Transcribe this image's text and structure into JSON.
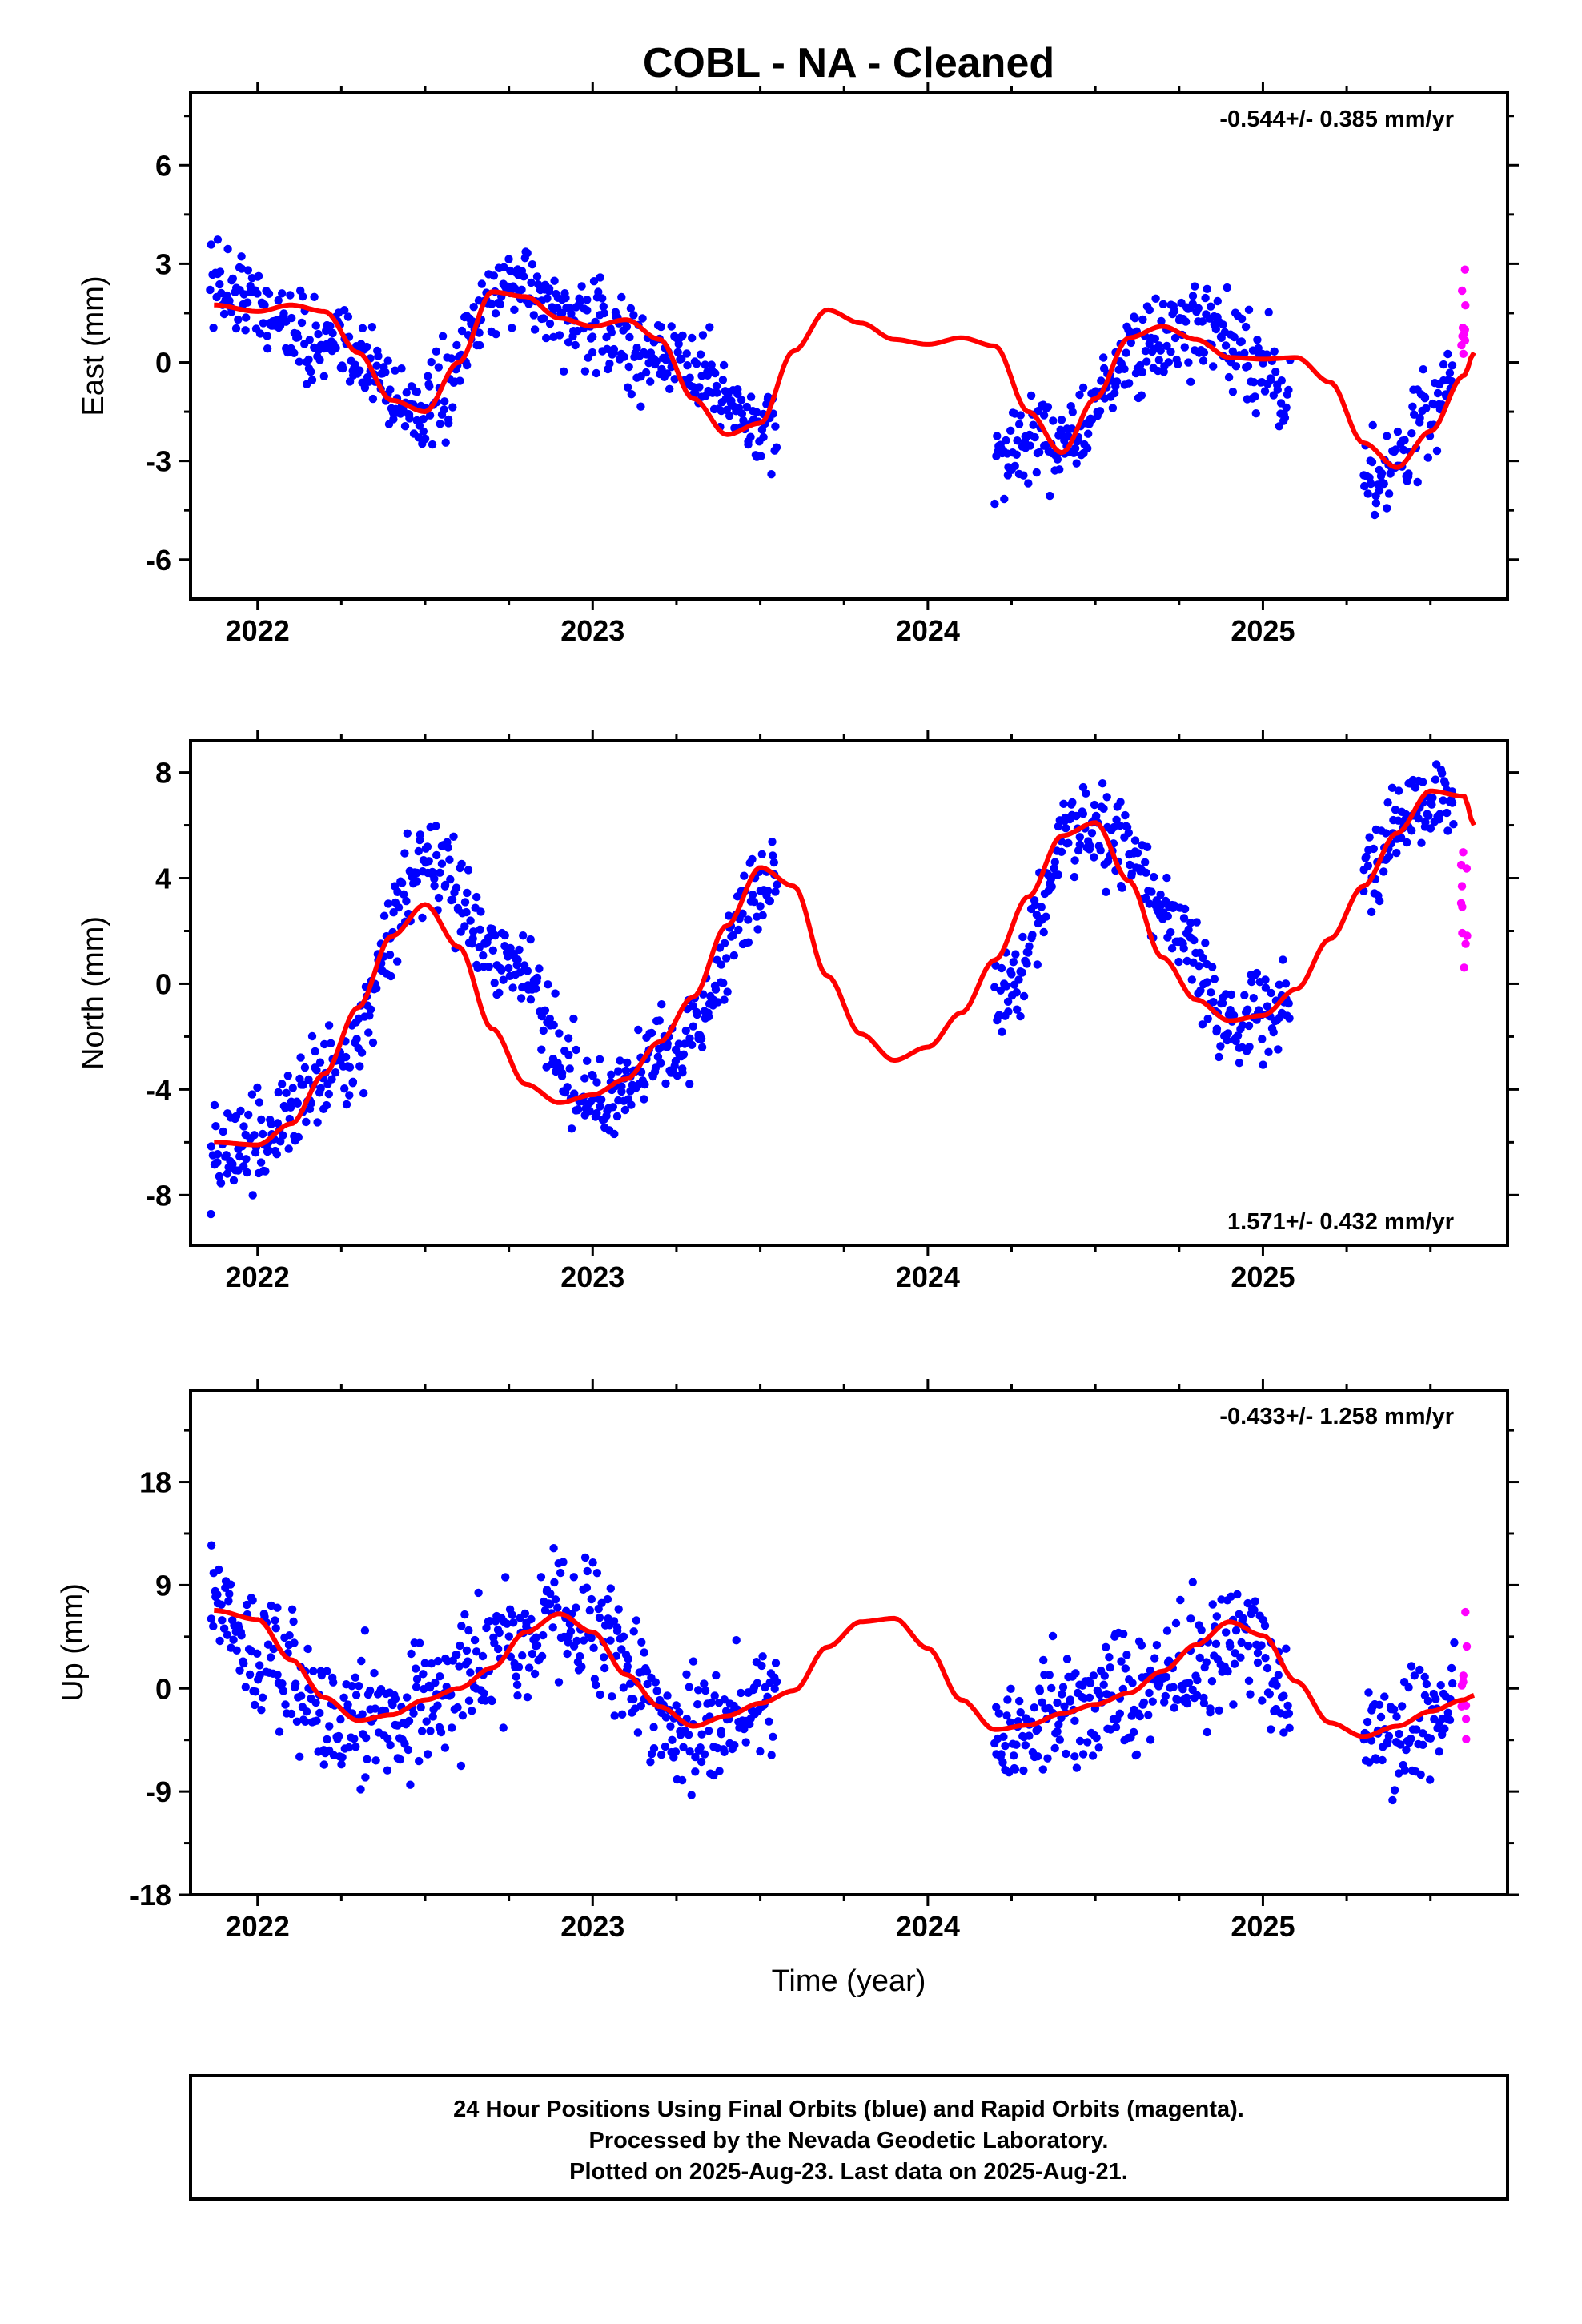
{
  "title": "COBL  - NA - Cleaned",
  "xlabel": "Time (year)",
  "footer": {
    "line1": "24 Hour Positions Using Final Orbits (blue) and Rapid Orbits (magenta).",
    "line2": "Processed by the Nevada Geodetic Laboratory.",
    "line3": "Plotted on 2025-Aug-23. Last data on 2025-Aug-21."
  },
  "colors": {
    "final": "#0000ff",
    "rapid": "#ff00ff",
    "model": "#ff0000",
    "frame": "#000000"
  },
  "chart_data": [
    {
      "type": "scatter",
      "ylabel": "East (mm)",
      "rate": "-0.544+/- 0.385 mm/yr",
      "rate_position": "top-right",
      "xlim": [
        2021.8,
        2025.73
      ],
      "ylim": [
        -7.2,
        8.2
      ],
      "xticks": [
        2022,
        2023,
        2024,
        2025
      ],
      "yticks": [
        6,
        3,
        0,
        -3,
        -6
      ],
      "grid": false,
      "series": [
        {
          "name": "Final Orbits",
          "color": "#0000ff",
          "segments": [
            {
              "x": [
                2021.86,
                2022.25,
                2022.5,
                2022.75,
                2023.0,
                2023.25,
                2023.55
              ],
              "y": [
                2.4,
                0.4,
                -1.5,
                2.5,
                1.0,
                0.0,
                -2.2
              ]
            },
            {
              "x": [
                2024.2,
                2024.45,
                2024.6,
                2024.8,
                2025.0,
                2025.08
              ],
              "y": [
                -2.8,
                -2.2,
                0.2,
                1.0,
                0.0,
                -1.0
              ]
            },
            {
              "x": [
                2025.3,
                2025.4,
                2025.5,
                2025.57
              ],
              "y": [
                -3.6,
                -3.0,
                -1.5,
                -0.4
              ]
            }
          ]
        },
        {
          "name": "Rapid Orbits",
          "color": "#ff00ff",
          "segments": [
            {
              "x": [
                2025.58,
                2025.61
              ],
              "y": [
                1.0,
                1.0
              ]
            }
          ]
        }
      ],
      "model": {
        "name": "fit",
        "color": "#ff0000",
        "x": [
          2021.87,
          2022.0,
          2022.1,
          2022.2,
          2022.3,
          2022.4,
          2022.5,
          2022.6,
          2022.7,
          2022.8,
          2022.9,
          2023.0,
          2023.1,
          2023.2,
          2023.3,
          2023.4,
          2023.5,
          2023.6,
          2023.7,
          2023.8,
          2023.9,
          2024.0,
          2024.1,
          2024.2,
          2024.3,
          2024.4,
          2024.5,
          2024.6,
          2024.7,
          2024.8,
          2024.9,
          2025.0,
          2025.1,
          2025.2,
          2025.3,
          2025.4,
          2025.5,
          2025.6,
          2025.63
        ],
        "y": [
          1.75,
          1.55,
          1.75,
          1.55,
          0.3,
          -1.15,
          -1.5,
          0.0,
          2.15,
          2.0,
          1.35,
          1.1,
          1.3,
          0.7,
          -1.1,
          -2.2,
          -1.85,
          0.35,
          1.6,
          1.2,
          0.7,
          0.55,
          0.75,
          0.5,
          -1.5,
          -2.75,
          -1.1,
          0.75,
          1.1,
          0.7,
          0.15,
          0.1,
          0.15,
          -0.6,
          -2.45,
          -3.2,
          -2.1,
          -0.4,
          0.3
        ]
      }
    },
    {
      "type": "scatter",
      "ylabel": "North (mm)",
      "rate": "1.571+/- 0.432 mm/yr",
      "rate_position": "bottom-right",
      "xlim": [
        2021.8,
        2025.73
      ],
      "ylim": [
        -9.9,
        9.2
      ],
      "xticks": [
        2022,
        2023,
        2024,
        2025
      ],
      "yticks": [
        8,
        4,
        0,
        -4,
        -8
      ],
      "grid": false,
      "series": [
        {
          "name": "Final Orbits",
          "color": "#0000ff",
          "segments": [
            {
              "x": [
                2021.86,
                2022.0,
                2022.25,
                2022.5,
                2022.75,
                2023.0,
                2023.25,
                2023.55
              ],
              "y": [
                -6.5,
                -6.0,
                -3.0,
                4.5,
                1.0,
                -4.5,
                -2.5,
                4.5
              ]
            },
            {
              "x": [
                2024.2,
                2024.45,
                2024.55,
                2024.75,
                2024.9,
                2025.08
              ],
              "y": [
                -1.0,
                6.0,
                5.5,
                2.0,
                -1.5,
                -0.5
              ]
            },
            {
              "x": [
                2025.3,
                2025.45,
                2025.57
              ],
              "y": [
                4.0,
                6.5,
                7.0
              ]
            }
          ]
        },
        {
          "name": "Rapid Orbits",
          "color": "#ff00ff",
          "segments": [
            {
              "x": [
                2025.58,
                2025.61
              ],
              "y": [
                3.5,
                3.5
              ]
            }
          ]
        }
      ],
      "model": {
        "name": "fit",
        "color": "#ff0000",
        "x": [
          2021.87,
          2022.0,
          2022.1,
          2022.2,
          2022.3,
          2022.4,
          2022.5,
          2022.6,
          2022.7,
          2022.8,
          2022.9,
          2023.0,
          2023.1,
          2023.2,
          2023.3,
          2023.4,
          2023.5,
          2023.6,
          2023.7,
          2023.8,
          2023.9,
          2024.0,
          2024.1,
          2024.2,
          2024.3,
          2024.4,
          2024.5,
          2024.6,
          2024.7,
          2024.8,
          2024.9,
          2025.0,
          2025.1,
          2025.2,
          2025.3,
          2025.4,
          2025.5,
          2025.6,
          2025.63
        ],
        "y": [
          -6.0,
          -6.1,
          -5.3,
          -3.4,
          -0.9,
          1.8,
          3.0,
          1.4,
          -1.7,
          -3.8,
          -4.5,
          -4.2,
          -3.6,
          -2.2,
          -0.5,
          2.2,
          4.4,
          3.7,
          0.3,
          -1.9,
          -2.9,
          -2.4,
          -1.1,
          0.9,
          3.3,
          5.6,
          6.1,
          3.9,
          1.0,
          -0.6,
          -1.4,
          -1.2,
          -0.2,
          1.7,
          3.7,
          5.7,
          7.3,
          7.1,
          6.0
        ]
      }
    },
    {
      "type": "scatter",
      "ylabel": "Up (mm)",
      "rate": "-0.433+/- 1.258 mm/yr",
      "rate_position": "top-right",
      "xlim": [
        2021.8,
        2025.73
      ],
      "ylim": [
        -18,
        26
      ],
      "xticks": [
        2022,
        2023,
        2024,
        2025
      ],
      "yticks": [
        18,
        9,
        0,
        -9,
        -18
      ],
      "grid": false,
      "series": [
        {
          "name": "Final Orbits",
          "color": "#0000ff",
          "segments": [
            {
              "x": [
                2021.86,
                2022.0,
                2022.25,
                2022.5,
                2022.75,
                2022.95,
                2023.25,
                2023.55
              ],
              "y": [
                8.0,
                2.0,
                -3.0,
                -1.0,
                4.0,
                7.0,
                -3.0,
                -2.0
              ]
            },
            {
              "x": [
                2024.2,
                2024.45,
                2024.6,
                2024.8,
                2024.95,
                2025.08
              ],
              "y": [
                -5.0,
                -1.0,
                -1.0,
                2.0,
                5.0,
                -1.0
              ]
            },
            {
              "x": [
                2025.3,
                2025.45,
                2025.57
              ],
              "y": [
                -4.0,
                -3.0,
                -2.0
              ]
            }
          ]
        },
        {
          "name": "Rapid Orbits",
          "color": "#ff00ff",
          "segments": [
            {
              "x": [
                2025.58,
                2025.61
              ],
              "y": [
                -1.0,
                -1.0
              ]
            }
          ]
        }
      ],
      "model": {
        "name": "fit",
        "color": "#ff0000",
        "x": [
          2021.87,
          2022.0,
          2022.1,
          2022.2,
          2022.3,
          2022.4,
          2022.5,
          2022.6,
          2022.7,
          2022.8,
          2022.9,
          2023.0,
          2023.1,
          2023.2,
          2023.3,
          2023.4,
          2023.5,
          2023.6,
          2023.7,
          2023.8,
          2023.9,
          2024.0,
          2024.1,
          2024.2,
          2024.3,
          2024.4,
          2024.5,
          2024.6,
          2024.7,
          2024.8,
          2024.9,
          2025.0,
          2025.1,
          2025.2,
          2025.3,
          2025.4,
          2025.5,
          2025.6,
          2025.63
        ],
        "y": [
          6.8,
          6.0,
          2.5,
          -0.8,
          -2.8,
          -2.3,
          -1.0,
          0.0,
          1.8,
          4.9,
          6.5,
          4.9,
          1.2,
          -1.6,
          -3.3,
          -2.4,
          -1.3,
          -0.2,
          3.6,
          5.8,
          6.1,
          3.5,
          -1.0,
          -3.6,
          -3.2,
          -2.2,
          -1.4,
          -0.4,
          1.5,
          3.8,
          5.8,
          4.6,
          0.6,
          -3.0,
          -4.2,
          -3.3,
          -2.0,
          -1.0,
          -0.6
        ]
      }
    }
  ]
}
